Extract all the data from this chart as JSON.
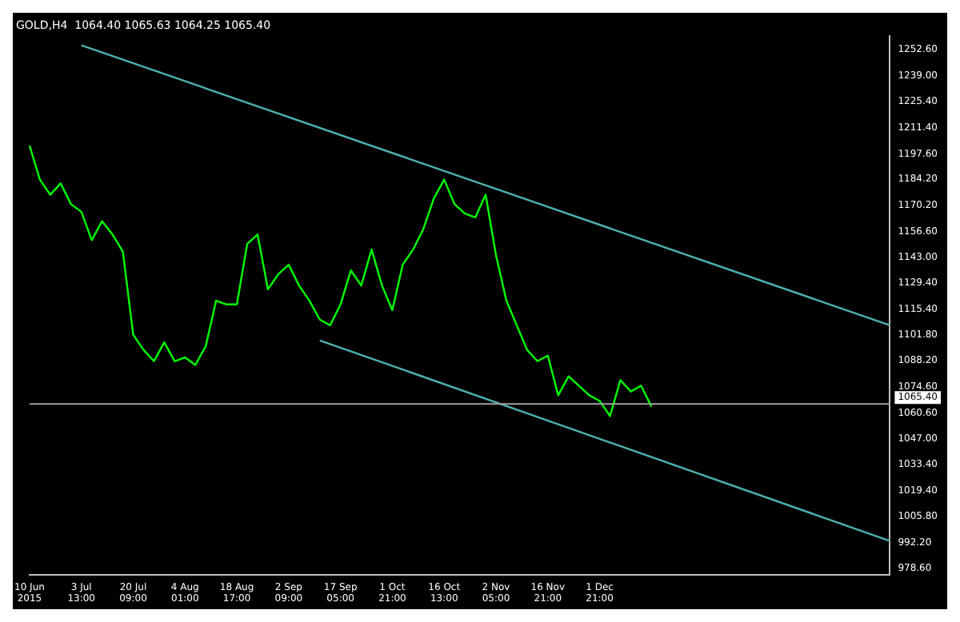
{
  "chart_data": {
    "type": "line",
    "title": "GOLD,H4  1064.40 1065.63 1064.25 1065.40",
    "categories": [
      "10 Jun 2015",
      null,
      null,
      null,
      null,
      "3 Jul 13:00",
      null,
      null,
      null,
      null,
      "20 Jul 09:00",
      null,
      null,
      null,
      null,
      "4 Aug 01:00",
      null,
      null,
      null,
      null,
      "18 Aug 17:00",
      null,
      null,
      null,
      null,
      "2 Sep 09:00",
      null,
      null,
      null,
      null,
      "17 Sep 05:00",
      null,
      null,
      null,
      null,
      "1 Oct 21:00",
      null,
      null,
      null,
      null,
      "16 Oct 13:00",
      null,
      null,
      null,
      null,
      "2 Nov 05:00",
      null,
      null,
      null,
      null,
      "16 Nov 21:00",
      null,
      null,
      null,
      null,
      "1 Dec 21:00",
      null,
      null,
      null,
      null,
      null,
      null,
      null,
      null,
      null,
      null,
      null,
      null,
      null,
      null,
      null,
      null,
      null,
      null,
      null,
      null,
      null,
      null,
      null,
      null,
      null,
      null,
      null,
      null
    ],
    "series": [
      {
        "color": "#00ff00",
        "values": [
          1202,
          1184,
          1176,
          1182,
          1171,
          1167,
          1152,
          1162,
          1155,
          1146,
          1102,
          1094,
          1088,
          1098,
          1088,
          1090,
          1086,
          1096,
          1120,
          1118,
          1118,
          1150,
          1155,
          1126,
          1134,
          1139,
          1128,
          1120,
          1110,
          1107,
          1118,
          1136,
          1128,
          1147,
          1128,
          1115,
          1139,
          1147,
          1158,
          1174,
          1184,
          1171,
          1166,
          1164,
          1176,
          1144,
          1120,
          1107,
          1094,
          1088,
          1091,
          1070,
          1080,
          1075,
          1070,
          1067,
          1059,
          1078,
          1072,
          1075,
          1064,
          null,
          null,
          null,
          null,
          null,
          null,
          null,
          null,
          null,
          null,
          null,
          null,
          null,
          null,
          null,
          null,
          null,
          null,
          null,
          null,
          null,
          null,
          null
        ]
      },
      {
        "color": "#4fb0b0",
        "type": "line",
        "values": [
          null,
          null,
          null,
          null,
          null,
          1255,
          null,
          null,
          null,
          null,
          null,
          null,
          null,
          null,
          null,
          null,
          null,
          null,
          null,
          null,
          null,
          null,
          null,
          null,
          null,
          null,
          null,
          null,
          null,
          null,
          null,
          null,
          null,
          null,
          null,
          null,
          null,
          null,
          null,
          null,
          null,
          null,
          null,
          null,
          null,
          null,
          null,
          null,
          null,
          null,
          null,
          null,
          null,
          null,
          null,
          null,
          null,
          null,
          null,
          null,
          null,
          null,
          null,
          null,
          null,
          null,
          null,
          null,
          null,
          null,
          null,
          null,
          null,
          null,
          null,
          null,
          null,
          null,
          null,
          null,
          null,
          null,
          null,
          1107
        ]
      },
      {
        "color": "#4fb0b0",
        "type": "line",
        "values": [
          null,
          null,
          null,
          null,
          null,
          null,
          null,
          null,
          null,
          null,
          null,
          null,
          null,
          null,
          null,
          null,
          null,
          null,
          null,
          null,
          null,
          null,
          null,
          null,
          null,
          null,
          null,
          null,
          1099,
          null,
          null,
          null,
          null,
          null,
          null,
          null,
          null,
          null,
          null,
          null,
          null,
          null,
          null,
          null,
          null,
          null,
          null,
          null,
          null,
          null,
          null,
          null,
          null,
          null,
          null,
          null,
          null,
          null,
          null,
          null,
          null,
          null,
          null,
          null,
          null,
          null,
          null,
          null,
          null,
          null,
          null,
          null,
          null,
          null,
          null,
          null,
          null,
          null,
          null,
          null,
          null,
          null,
          null,
          993
        ]
      }
    ],
    "ylim": [
      975,
      1260
    ],
    "yticks": [
      {
        "value": 1252.6,
        "label": "1252.60"
      },
      {
        "value": 1239,
        "label": "1239.00"
      },
      {
        "value": 1225.4,
        "label": "1225.40"
      },
      {
        "value": 1211.4,
        "label": "1211.40"
      },
      {
        "value": 1197.6,
        "label": "1197.60"
      },
      {
        "value": 1184.2,
        "label": "1184.20"
      },
      {
        "value": 1170.2,
        "label": "1170.20"
      },
      {
        "value": 1156.6,
        "label": "1156.60"
      },
      {
        "value": 1143,
        "label": "1143.00"
      },
      {
        "value": 1129.4,
        "label": "1129.40"
      },
      {
        "value": 1115.4,
        "label": "1115.40"
      },
      {
        "value": 1101.8,
        "label": "1101.80"
      },
      {
        "value": 1088.2,
        "label": "1088.20"
      },
      {
        "value": 1074.6,
        "label": "1074.60"
      },
      {
        "value": 1060.6,
        "label": "1060.60"
      },
      {
        "value": 1047,
        "label": "1047.00"
      },
      {
        "value": 1033.4,
        "label": "1033.40"
      },
      {
        "value": 1019.4,
        "label": "1019.40"
      },
      {
        "value": 1005.8,
        "label": "1005.80"
      },
      {
        "value": 992.2,
        "label": "992.20"
      },
      {
        "value": 978.6,
        "label": "978.60"
      }
    ],
    "ref_lines": [
      {
        "axis": "y",
        "value": 1065.4,
        "label": "1065.40",
        "color": "#a0a0a0"
      }
    ],
    "grid": false,
    "legend": false,
    "marker": "none",
    "line_style": "solid"
  }
}
